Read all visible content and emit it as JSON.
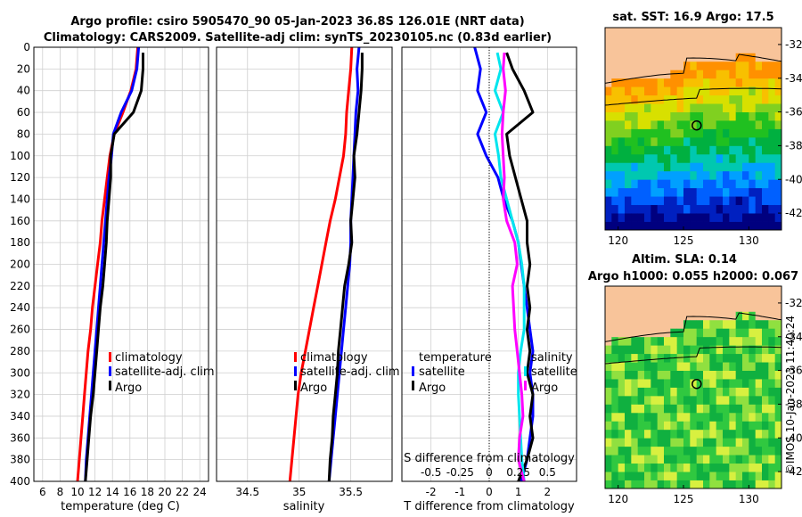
{
  "title": {
    "line1": "Argo profile: csiro 5905470_90 05-Jan-2023 36.8S 126.01E (NRT data)",
    "line2": "Climatology: CARS2009. Satellite-adj clim: synTS_20230105.nc (0.83d earlier)"
  },
  "colors": {
    "climatology": "#ff0000",
    "satellite": "#0000ff",
    "argo": "#000000",
    "salinity_diff": "#ff00ff",
    "satellite_salinity_diff": "#00e5ee",
    "land": "#f8c49a"
  },
  "chart_data": [
    {
      "type": "line",
      "name": "temperature-profile",
      "xlabel": "temperature (deg C)",
      "ylabel": "depth",
      "xlim": [
        5,
        25
      ],
      "ylim": [
        400,
        0
      ],
      "xticks": [
        6,
        8,
        10,
        12,
        14,
        16,
        18,
        20,
        22,
        24
      ],
      "yticks": [
        0,
        20,
        40,
        60,
        80,
        100,
        120,
        140,
        160,
        180,
        200,
        220,
        240,
        260,
        280,
        300,
        320,
        340,
        360,
        380,
        400
      ],
      "legend": [
        "climatology",
        "satellite-adj. clim",
        "Argo"
      ],
      "series": [
        {
          "name": "climatology",
          "color": "#ff0000",
          "x": [
            16.9,
            16.7,
            16.1,
            15.2,
            14.2,
            13.7,
            13.4,
            13.1,
            12.8,
            12.6,
            12.3,
            12.0,
            11.7,
            11.5,
            11.2,
            11.0,
            10.8,
            10.6,
            10.4,
            10.2,
            10.0
          ],
          "y": [
            0,
            20,
            40,
            60,
            80,
            100,
            120,
            140,
            160,
            180,
            200,
            220,
            240,
            260,
            280,
            300,
            320,
            340,
            360,
            380,
            400
          ]
        },
        {
          "name": "satellite-adj. clim",
          "color": "#0000ff",
          "x": [
            17.0,
            16.8,
            16.2,
            15.0,
            14.1,
            13.9,
            13.6,
            13.4,
            13.2,
            13.0,
            12.8,
            12.6,
            12.4,
            12.2,
            12.0,
            11.8,
            11.6,
            11.4,
            11.2,
            11.0,
            10.9
          ],
          "y": [
            0,
            20,
            40,
            60,
            80,
            100,
            120,
            140,
            160,
            180,
            200,
            220,
            240,
            260,
            280,
            300,
            320,
            340,
            360,
            380,
            400
          ]
        },
        {
          "name": "Argo",
          "color": "#000000",
          "x": [
            17.5,
            17.5,
            17.3,
            16.4,
            14.2,
            13.8,
            13.8,
            13.6,
            13.4,
            13.3,
            13.1,
            12.9,
            12.6,
            12.4,
            12.2,
            12.0,
            11.8,
            11.5,
            11.3,
            11.1,
            10.9
          ],
          "y": [
            5,
            20,
            40,
            60,
            80,
            100,
            120,
            140,
            160,
            180,
            200,
            220,
            240,
            260,
            280,
            300,
            320,
            340,
            360,
            380,
            400
          ]
        }
      ]
    },
    {
      "type": "line",
      "name": "salinity-profile",
      "xlabel": "salinity",
      "xlim": [
        34.2,
        35.9
      ],
      "ylim": [
        400,
        0
      ],
      "xticks": [
        34.5,
        35,
        35.5
      ],
      "legend": [
        "climatology",
        "satellite-adj. clim",
        "Argo"
      ],
      "series": [
        {
          "name": "climatology",
          "color": "#ff0000",
          "x": [
            35.51,
            35.5,
            35.48,
            35.46,
            35.45,
            35.43,
            35.39,
            35.35,
            35.3,
            35.26,
            35.22,
            35.18,
            35.14,
            35.1,
            35.06,
            35.02,
            34.99,
            34.97,
            34.95,
            34.93,
            34.91
          ],
          "y": [
            0,
            20,
            40,
            60,
            80,
            100,
            120,
            140,
            160,
            180,
            200,
            220,
            240,
            260,
            280,
            300,
            320,
            340,
            360,
            380,
            400
          ]
        },
        {
          "name": "satellite-adj. clim",
          "color": "#0000ff",
          "x": [
            35.58,
            35.56,
            35.57,
            35.55,
            35.54,
            35.53,
            35.52,
            35.51,
            35.5,
            35.5,
            35.49,
            35.47,
            35.45,
            35.43,
            35.41,
            35.39,
            35.37,
            35.35,
            35.33,
            35.31,
            35.29
          ],
          "y": [
            0,
            20,
            40,
            60,
            80,
            100,
            120,
            140,
            160,
            180,
            200,
            220,
            240,
            260,
            280,
            300,
            320,
            340,
            360,
            380,
            400
          ]
        },
        {
          "name": "Argo",
          "color": "#000000",
          "x": [
            35.61,
            35.61,
            35.6,
            35.58,
            35.56,
            35.53,
            35.54,
            35.52,
            35.5,
            35.51,
            35.48,
            35.44,
            35.42,
            35.4,
            35.38,
            35.37,
            35.35,
            35.33,
            35.32,
            35.3,
            35.29
          ],
          "y": [
            5,
            20,
            40,
            60,
            80,
            100,
            120,
            140,
            160,
            180,
            200,
            220,
            240,
            260,
            280,
            300,
            320,
            340,
            360,
            380,
            400
          ]
        }
      ]
    },
    {
      "type": "line",
      "name": "difference-profile",
      "xlabel": "T difference from climatology",
      "x2label": "S difference from climatology",
      "xlim": [
        -3,
        3
      ],
      "x2lim": [
        -0.75,
        0.75
      ],
      "ylim": [
        400,
        0
      ],
      "xticks": [
        -2,
        -1,
        0,
        1,
        2
      ],
      "x2ticks": [
        "-0.5",
        "-0.25",
        "0",
        "0.25",
        "0.5"
      ],
      "legend_left_title": "temperature",
      "legend_left": [
        "satellite",
        "Argo"
      ],
      "legend_right_title": "salinity",
      "legend_right": [
        "satellite",
        "Argo"
      ],
      "series": [
        {
          "name": "temperature satellite",
          "color": "#0000ff",
          "axis": "T",
          "x": [
            -0.5,
            -0.3,
            -0.4,
            -0.1,
            -0.4,
            -0.1,
            0.3,
            0.5,
            0.8,
            1.0,
            1.1,
            1.2,
            1.3,
            1.4,
            1.5,
            1.4,
            1.5,
            1.5,
            1.4,
            1.3,
            1.1
          ],
          "y": [
            0,
            20,
            40,
            60,
            80,
            100,
            120,
            140,
            160,
            180,
            200,
            220,
            240,
            260,
            280,
            300,
            320,
            340,
            360,
            380,
            400
          ]
        },
        {
          "name": "temperature Argo",
          "color": "#000000",
          "axis": "T",
          "x": [
            0.6,
            0.8,
            1.2,
            1.5,
            0.6,
            0.7,
            0.9,
            1.1,
            1.3,
            1.3,
            1.4,
            1.3,
            1.4,
            1.3,
            1.4,
            1.3,
            1.5,
            1.4,
            1.5,
            1.3,
            1.0
          ],
          "y": [
            5,
            20,
            40,
            60,
            80,
            100,
            120,
            140,
            160,
            180,
            200,
            220,
            240,
            260,
            280,
            300,
            320,
            340,
            360,
            380,
            400
          ]
        },
        {
          "name": "salinity satellite",
          "color": "#00e5ee",
          "axis": "S",
          "x": [
            0.07,
            0.1,
            0.05,
            0.12,
            0.05,
            0.08,
            0.1,
            0.15,
            0.2,
            0.25,
            0.28,
            0.3,
            0.3,
            0.3,
            0.27,
            0.25,
            0.25,
            0.26,
            0.27,
            0.28,
            0.3
          ],
          "y": [
            5,
            20,
            40,
            60,
            80,
            100,
            120,
            140,
            160,
            180,
            200,
            220,
            240,
            260,
            280,
            300,
            320,
            340,
            360,
            380,
            400
          ]
        },
        {
          "name": "salinity Argo",
          "color": "#ff00ff",
          "axis": "S",
          "x": [
            0.13,
            0.12,
            0.14,
            0.12,
            0.11,
            0.12,
            0.13,
            0.12,
            0.15,
            0.22,
            0.24,
            0.2,
            0.21,
            0.22,
            0.24,
            0.26,
            0.28,
            0.29,
            0.26,
            0.25,
            0.3
          ],
          "y": [
            5,
            20,
            40,
            60,
            80,
            100,
            120,
            140,
            160,
            180,
            200,
            220,
            240,
            260,
            280,
            300,
            320,
            340,
            360,
            380,
            400
          ]
        }
      ]
    },
    {
      "type": "heatmap",
      "name": "sst-map",
      "title": "sat. SST: 16.9 Argo: 17.5",
      "xlim": [
        119,
        132.5
      ],
      "ylim": [
        -43,
        -31
      ],
      "xticks": [
        120,
        125,
        130
      ],
      "yticks": [
        -32,
        -34,
        -36,
        -38,
        -40,
        -42
      ],
      "marker": {
        "lon": 126.01,
        "lat": -36.8
      }
    },
    {
      "type": "heatmap",
      "name": "sla-map",
      "title1": "Altim. SLA: 0.14",
      "title2": "Argo h1000: 0.055 h2000: 0.067",
      "xlim": [
        119,
        132.5
      ],
      "ylim": [
        -43,
        -31
      ],
      "xticks": [
        120,
        125,
        130
      ],
      "yticks": [
        -32,
        -34,
        -36,
        -38,
        -40,
        -42
      ],
      "marker": {
        "lon": 126.01,
        "lat": -36.8
      }
    }
  ],
  "watermark": "©IMOS 10-Jan-2023 11:40:24"
}
